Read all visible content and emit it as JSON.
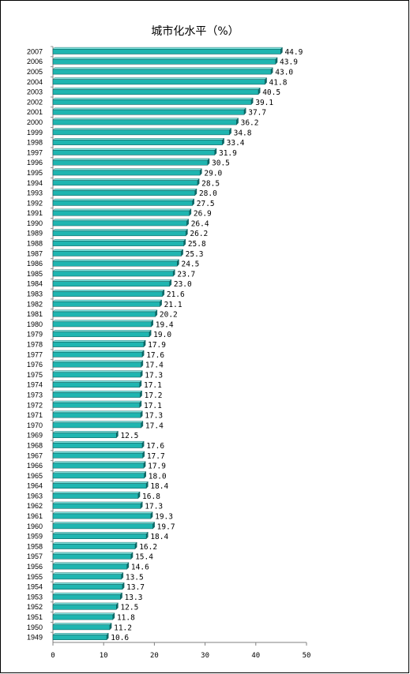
{
  "chart_data": {
    "type": "bar",
    "orientation": "horizontal",
    "title": "城市化水平（%）",
    "categories": [
      "2007",
      "2006",
      "2005",
      "2004",
      "2003",
      "2002",
      "2001",
      "2000",
      "1999",
      "1998",
      "1997",
      "1996",
      "1995",
      "1994",
      "1993",
      "1992",
      "1991",
      "1990",
      "1989",
      "1988",
      "1987",
      "1986",
      "1985",
      "1984",
      "1983",
      "1982",
      "1981",
      "1980",
      "1979",
      "1978",
      "1977",
      "1976",
      "1975",
      "1974",
      "1973",
      "1972",
      "1971",
      "1970",
      "1969",
      "1968",
      "1967",
      "1966",
      "1965",
      "1964",
      "1963",
      "1962",
      "1961",
      "1960",
      "1959",
      "1958",
      "1957",
      "1956",
      "1955",
      "1954",
      "1953",
      "1952",
      "1951",
      "1950",
      "1949"
    ],
    "values": [
      44.9,
      43.9,
      43.0,
      41.8,
      40.5,
      39.1,
      37.7,
      36.2,
      34.8,
      33.4,
      31.9,
      30.5,
      29.0,
      28.5,
      28.0,
      27.5,
      26.9,
      26.4,
      26.2,
      25.8,
      25.3,
      24.5,
      23.7,
      23.0,
      21.6,
      21.1,
      20.2,
      19.4,
      19.0,
      17.9,
      17.6,
      17.4,
      17.3,
      17.1,
      17.2,
      17.1,
      17.3,
      17.4,
      12.5,
      17.6,
      17.7,
      17.9,
      18.0,
      18.4,
      16.8,
      17.3,
      19.3,
      19.7,
      18.4,
      16.2,
      15.4,
      14.6,
      13.5,
      13.7,
      13.3,
      12.5,
      11.8,
      11.2,
      10.6
    ],
    "labels": [
      "44.9",
      "43.9",
      "43.0",
      "41.8",
      "40.5",
      "39.1",
      "37.7",
      "36.2",
      "34.8",
      "33.4",
      "31.9",
      "30.5",
      "29.0",
      "28.5",
      "28.0",
      "27.5",
      "26.9",
      "26.4",
      "26.2",
      "25.8",
      "25.3",
      "24.5",
      "23.7",
      "23.0",
      "21.6",
      "21.1",
      "20.2",
      "19.4",
      "19.0",
      "17.9",
      "17.6",
      "17.4",
      "17.3",
      "17.1",
      "17.2",
      "17.1",
      "17.3",
      "17.4",
      "12.5",
      "17.6",
      "17.7",
      "17.9",
      "18.0",
      "18.4",
      "16.8",
      "17.3",
      "19.3",
      "19.7",
      "18.4",
      "16.2",
      "15.4",
      "14.6",
      "13.5",
      "13.7",
      "13.3",
      "12.5",
      "11.8",
      "11.2",
      "10.6"
    ],
    "x_ticks": [
      "0",
      "10",
      "20",
      "30",
      "40",
      "50"
    ],
    "xlim": [
      0,
      50
    ],
    "xlabel": "",
    "ylabel": "",
    "grid": false,
    "legend": "none",
    "bar_color": "#1fb5b0",
    "bar_shade_color": "#0e6b69",
    "bar_highlight_color": "#7fe3df",
    "axis_color": "#808080",
    "border_color": "#000000"
  }
}
